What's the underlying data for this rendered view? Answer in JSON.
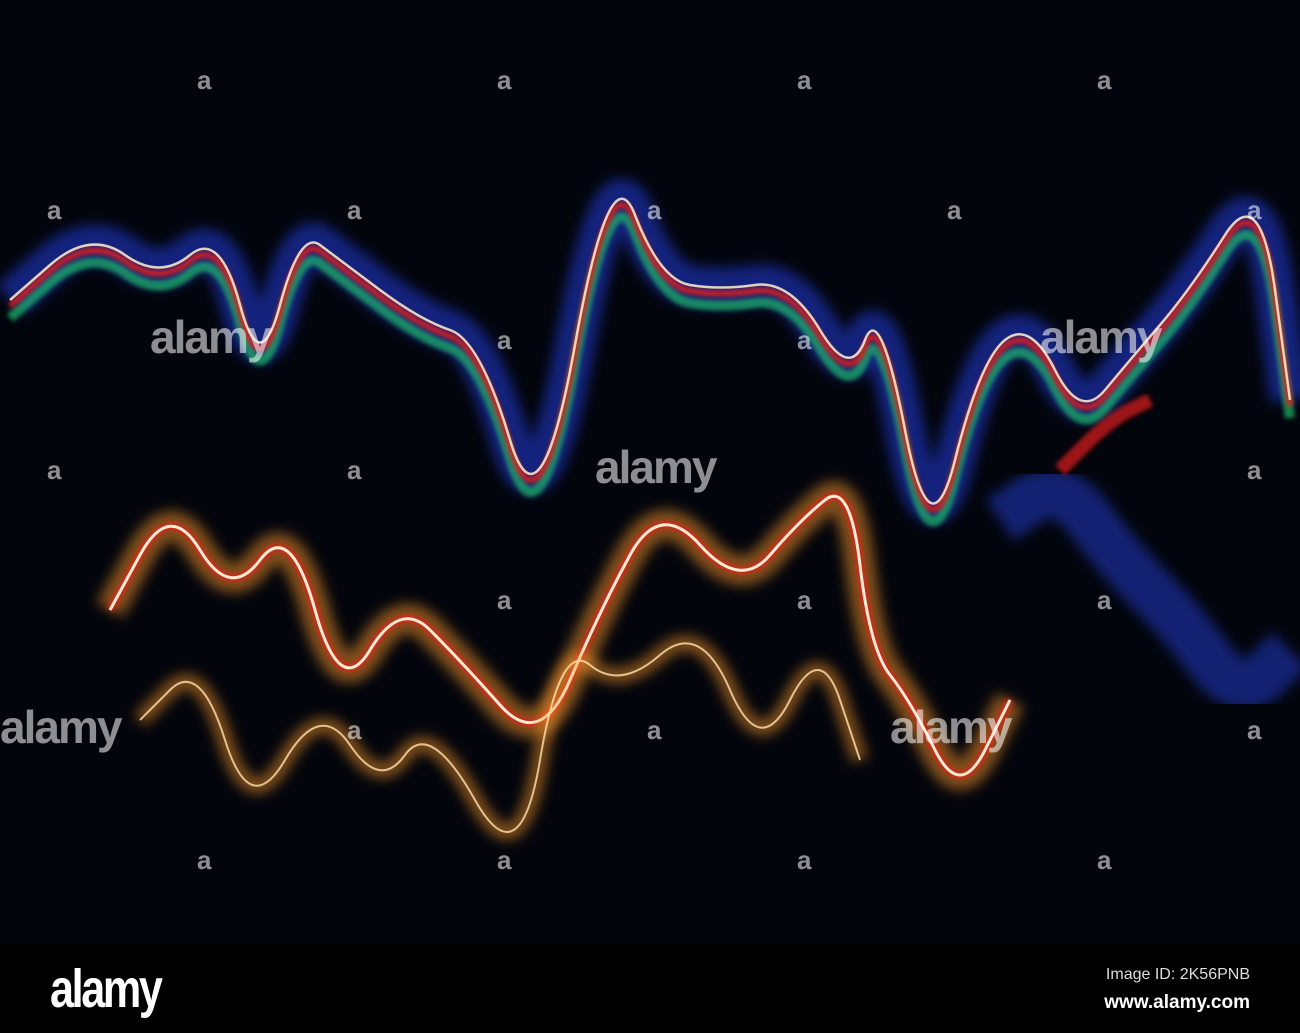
{
  "watermark": {
    "text": "alamy",
    "mark": "a"
  },
  "footer": {
    "logo": "alamy",
    "image_id": "Image ID: 2K56PNB",
    "url": "www.alamy.com"
  },
  "colors": {
    "background": "#03050c",
    "accent_warm": "#ff9a2a",
    "accent_red": "#e0201a",
    "accent_blue": "#1d3bd8",
    "accent_green": "#1fb86a"
  }
}
